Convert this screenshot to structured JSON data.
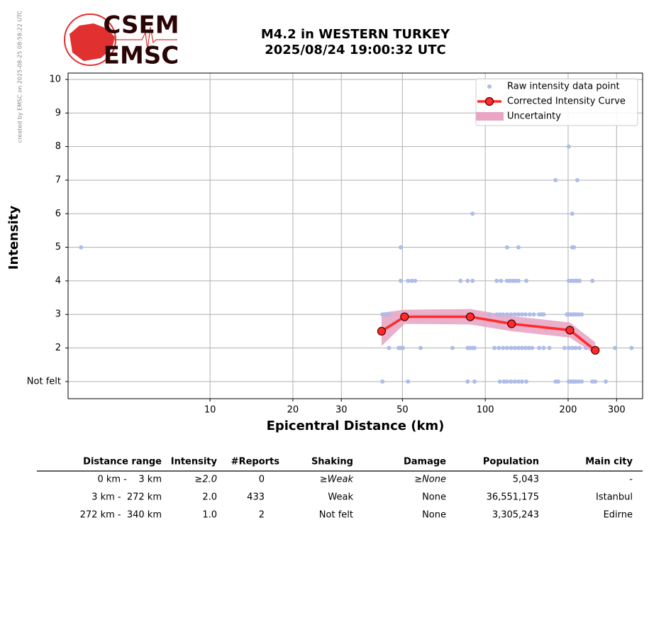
{
  "credit": "created by EMSC on 2025-08-25 08:58:22 UTC",
  "logo": {
    "top": "CSEM",
    "bottom": "EMSC"
  },
  "chart_data": {
    "type": "scatter",
    "title": "M4.2 in WESTERN TURKEY",
    "subtitle": "2025/08/24 19:00:32 UTC",
    "xlabel": "Epicentral Distance (km)",
    "ylabel": "Intensity",
    "xscale": "log",
    "grid": true,
    "legend": "upper right",
    "xlim": [
      3.05,
      373
    ],
    "xticks": [
      10,
      20,
      30,
      50,
      100,
      200,
      300
    ],
    "ylim": [
      0.49,
      10.19
    ],
    "yticks": [
      {
        "value": 1,
        "label": "Not felt"
      },
      2,
      3,
      4,
      5,
      6,
      7,
      8,
      9,
      10
    ],
    "series": [
      {
        "name": "Raw intensity data point",
        "color": "#aebce8",
        "kind": "scatter",
        "x": [
          201,
          180,
          216,
          89.9,
          207,
          3.4,
          49.3,
          120,
          132,
          207,
          210,
          49.3,
          52.4,
          54,
          55.6,
          81.3,
          86.3,
          89.9,
          110,
          114,
          120,
          123,
          126,
          129,
          132,
          141,
          201,
          205,
          209,
          213,
          216,
          220,
          245,
          42.3,
          43.5,
          44.7,
          103.5,
          110,
          113,
          116,
          120,
          124,
          128,
          132,
          136,
          140,
          145,
          150,
          157,
          160,
          163,
          198,
          201,
          205,
          209,
          213,
          218,
          224,
          44.7,
          48.5,
          49.3,
          50.2,
          58.2,
          76,
          86.3,
          88,
          89.9,
          91.4,
          108,
          112,
          116,
          120,
          124,
          128,
          132,
          136,
          140,
          144,
          148,
          157,
          163,
          171,
          194,
          201,
          207,
          213,
          220,
          232,
          251,
          296,
          340,
          42.3,
          52.4,
          86.3,
          91.4,
          113,
          117,
          120,
          124,
          128,
          132,
          136,
          141,
          180,
          184,
          201,
          205,
          209,
          213,
          218,
          224,
          245,
          251,
          274
        ],
        "values": [
          8,
          7,
          7,
          6,
          6,
          5,
          5,
          5,
          5,
          5,
          5,
          4,
          4,
          4,
          4,
          4,
          4,
          4,
          4,
          4,
          4,
          4,
          4,
          4,
          4,
          4,
          4,
          4,
          4,
          4,
          4,
          4,
          4,
          3,
          3,
          3,
          3,
          3,
          3,
          3,
          3,
          3,
          3,
          3,
          3,
          3,
          3,
          3,
          3,
          3,
          3,
          3,
          3,
          3,
          3,
          3,
          3,
          3,
          2,
          2,
          2,
          2,
          2,
          2,
          2,
          2,
          2,
          2,
          2,
          2,
          2,
          2,
          2,
          2,
          2,
          2,
          2,
          2,
          2,
          2,
          2,
          2,
          2,
          2,
          2,
          2,
          2,
          2,
          2,
          2,
          2,
          1,
          1,
          1,
          1,
          1,
          1,
          1,
          1,
          1,
          1,
          1,
          1,
          1,
          1,
          1,
          1,
          1,
          1,
          1,
          1,
          1,
          1,
          1
        ]
      },
      {
        "name": "Corrected Intensity Curve",
        "color": "#ff2a2a",
        "kind": "line",
        "x": [
          42.0,
          50.9,
          88.2,
          124.6,
          203,
          251
        ],
        "values": [
          2.5,
          2.93,
          2.93,
          2.72,
          2.53,
          1.93
        ]
      },
      {
        "name": "Uncertainty",
        "color": "#e8a6c4",
        "kind": "band",
        "x": [
          42.0,
          50.9,
          88.2,
          124.6,
          203,
          251
        ],
        "lower": [
          2.06,
          2.72,
          2.7,
          2.5,
          2.31,
          1.81
        ],
        "upper": [
          3.05,
          3.14,
          3.16,
          2.95,
          2.76,
          2.17
        ]
      }
    ]
  },
  "table": {
    "columns": [
      "Distance range",
      "Intensity",
      "#Reports",
      "Shaking",
      "Damage",
      "Population",
      "Main city"
    ],
    "rows": [
      [
        "0 km -    3 km",
        "≥2.0",
        "0",
        "≥Weak",
        "≥None",
        "5,043",
        "-"
      ],
      [
        "3 km -  272 km",
        "2.0",
        "433",
        "Weak",
        "None",
        "36,551,175",
        "Istanbul"
      ],
      [
        "272 km -  340 km",
        "1.0",
        "2",
        "Not felt",
        "None",
        "3,305,243",
        "Edirne"
      ]
    ]
  }
}
